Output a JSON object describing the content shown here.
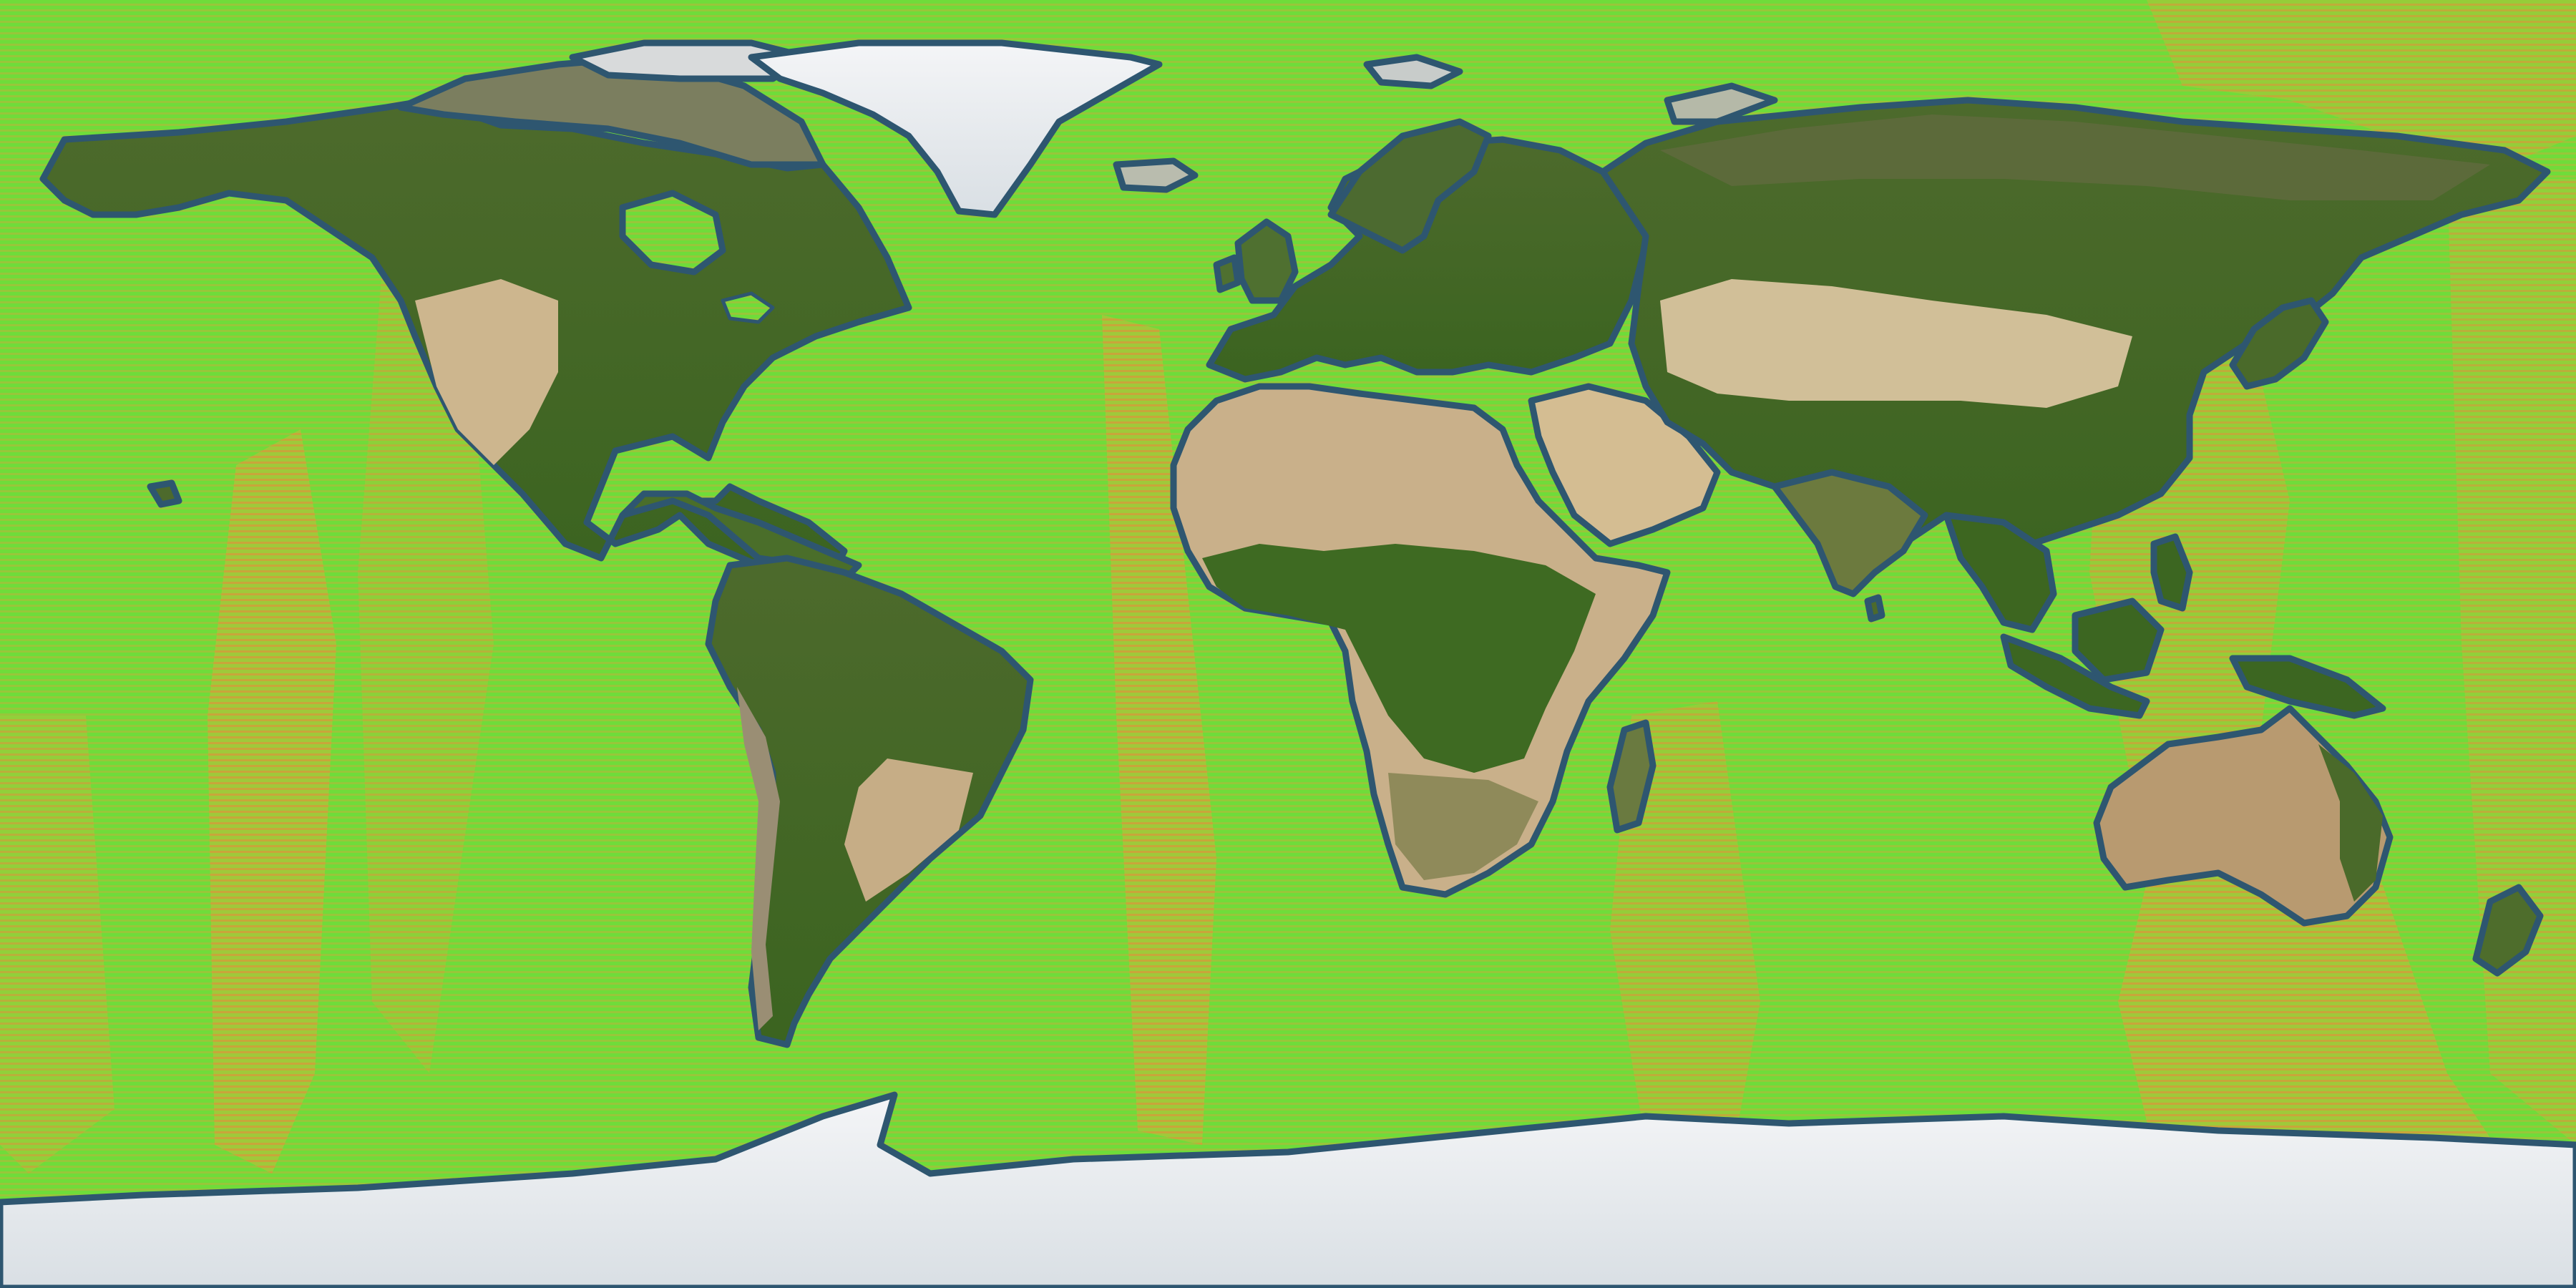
{
  "map": {
    "projection": "equirectangular",
    "coverage": "global",
    "ocean_color": "#6fdc3a",
    "ocean_warm_stripe_color": "#d2a03a",
    "coast_outline_color": "#2e5670",
    "land_forest_color": "#3f6a22",
    "land_desert_color": "#d9c8a2",
    "land_ice_color": "#f2f4f6",
    "landmasses": [
      "north-america",
      "greenland",
      "south-america",
      "europe",
      "africa",
      "asia",
      "arabian-peninsula",
      "indian-subcontinent",
      "australia",
      "antarctica",
      "madagascar",
      "japan",
      "new-zealand",
      "british-isles",
      "indonesia",
      "new-guinea",
      "iceland",
      "svalbard",
      "novaya-zemlya",
      "sri-lanka",
      "hawaii"
    ]
  }
}
